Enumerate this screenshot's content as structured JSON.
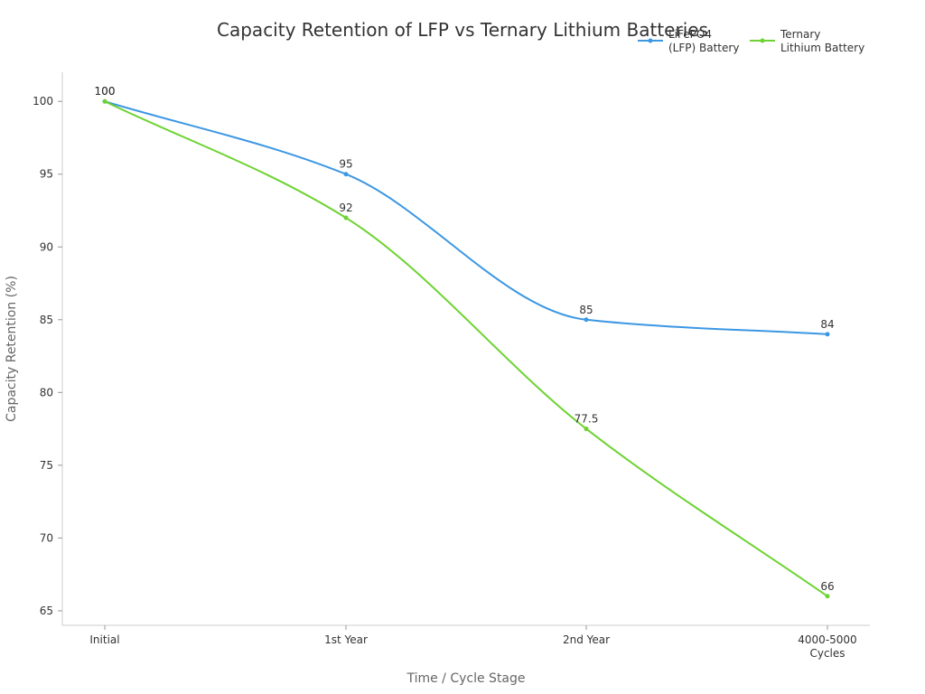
{
  "chart_data": {
    "type": "line",
    "title": "Capacity Retention of LFP vs Ternary Lithium Batteries",
    "xlabel": "Time / Cycle Stage",
    "ylabel": "Capacity Retention (%)",
    "categories": [
      [
        "Initial"
      ],
      [
        "1st Year"
      ],
      [
        "2nd Year"
      ],
      [
        "4000-5000",
        "Cycles"
      ]
    ],
    "ylim": [
      64,
      102
    ],
    "yticks": [
      65,
      70,
      75,
      80,
      85,
      90,
      95,
      100
    ],
    "grid": false,
    "legend_position": "top-right",
    "series": [
      {
        "name": [
          "LiFePO4",
          "(LFP) Battery"
        ],
        "color": "#3b97e3",
        "values": [
          100,
          95,
          85,
          84
        ],
        "labels": [
          "100",
          "95",
          "85",
          "84"
        ]
      },
      {
        "name": [
          "Ternary",
          "Lithium Battery"
        ],
        "color": "#6dd332",
        "values": [
          100,
          92,
          77.5,
          66
        ],
        "labels": [
          "100",
          "92",
          "77.5",
          "66"
        ]
      }
    ]
  }
}
